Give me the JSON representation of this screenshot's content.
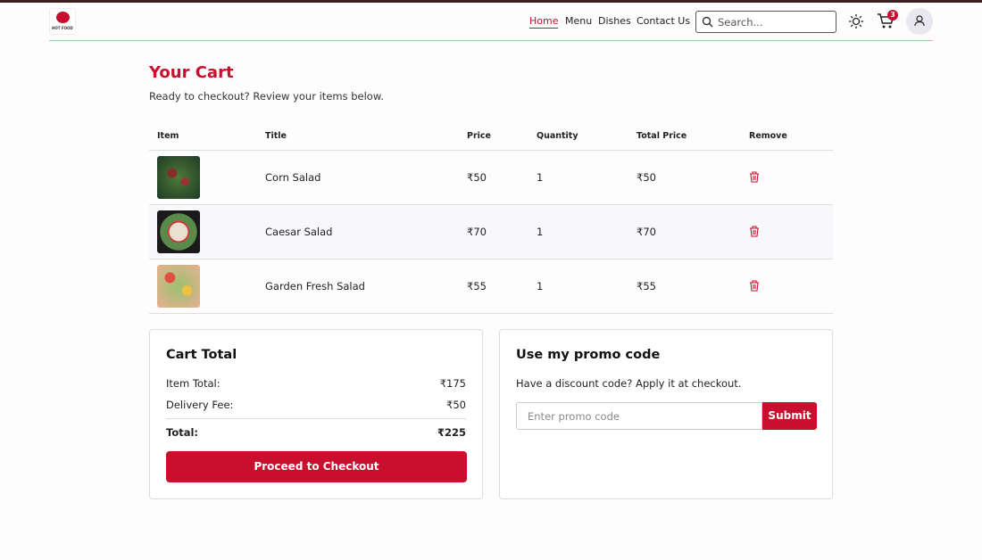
{
  "nav": {
    "logo": "HOT FOOD",
    "links": [
      "Home",
      "Menu",
      "Dishes",
      "Contact Us"
    ],
    "search_placeholder": "Search...",
    "cart_count": 3
  },
  "header": {
    "title": "Your Cart",
    "subtitle": "Ready to checkout? Review your items below."
  },
  "table": {
    "columns": [
      "Item",
      "Title",
      "Price",
      "Quantity",
      "Total Price",
      "Remove"
    ],
    "rows": [
      [
        "Corn Salad",
        "₹50",
        1,
        "₹50"
      ],
      [
        "Caesar Salad",
        "₹70",
        1,
        "₹70"
      ],
      [
        "Garden Fresh Salad",
        "₹55",
        1,
        "₹55"
      ]
    ]
  },
  "cart_total": {
    "title": "Cart Total",
    "item_total_label": "Item Total:",
    "item_total": "₹175",
    "delivery_label": "Delivery Fee:",
    "delivery": "₹50",
    "total_label": "Total:",
    "total": "₹225",
    "button": "Proceed to Checkout"
  },
  "promo": {
    "title": "Use my promo code",
    "text": "Have a discount code? Apply it at checkout.",
    "placeholder": "Enter promo code",
    "button": "Submit"
  }
}
